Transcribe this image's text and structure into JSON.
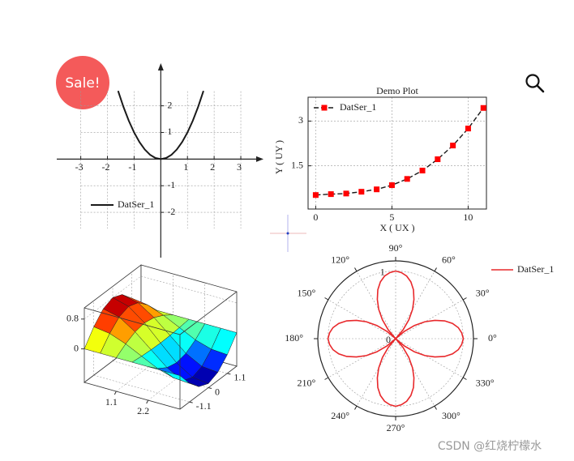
{
  "badge": "Sale!",
  "watermark": "CSDN @红烧柠檬水",
  "chart_data": [
    {
      "type": "line",
      "axes": "centered",
      "x": [
        -1.6,
        -1.4,
        -1.2,
        -1.0,
        -0.8,
        -0.6,
        -0.4,
        -0.2,
        0,
        0.2,
        0.4,
        0.6,
        0.8,
        1.0,
        1.2,
        1.4,
        1.6
      ],
      "series": [
        {
          "name": "DatSer_1",
          "color": "#1a1a1a",
          "values": [
            2.56,
            1.96,
            1.44,
            1,
            0.64,
            0.36,
            0.16,
            0.04,
            0,
            0.04,
            0.16,
            0.36,
            0.64,
            1,
            1.44,
            1.96,
            2.56
          ]
        }
      ],
      "xlim": [
        -3.9,
        3.85
      ],
      "ylim": [
        -3.7,
        3.6
      ],
      "xticks": [
        -3,
        -2,
        -1,
        1,
        2,
        3
      ],
      "yticks": [
        -2,
        -1,
        1,
        2
      ],
      "grid": true,
      "legend": "lower left"
    },
    {
      "type": "line",
      "title": "Demo Plot",
      "x_label": "X ( UX )",
      "y_label": "Y ( UY )",
      "x": [
        0,
        1,
        2,
        3,
        4,
        5,
        6,
        7,
        8,
        9,
        10,
        11
      ],
      "series": [
        {
          "name": "DatSer_1",
          "color": "#1a1a1a",
          "marker_color": "#ff0000",
          "values": [
            0.52,
            0.55,
            0.57,
            0.63,
            0.71,
            0.85,
            1.06,
            1.34,
            1.72,
            2.18,
            2.75,
            3.44
          ]
        }
      ],
      "xlim": [
        -0.5,
        11.2
      ],
      "ylim": [
        0.05,
        3.8
      ],
      "xticks": [
        0,
        5,
        10
      ],
      "yticks": [
        1.5,
        3
      ],
      "grid": true,
      "legend": "upper left"
    },
    {
      "type": "surface",
      "colormap": "jet",
      "x": [
        0,
        0.55,
        1.1,
        1.65,
        2.2,
        2.75,
        3.3
      ],
      "y": [
        -1.65,
        -1.1,
        -0.55,
        0,
        0.55,
        1.1,
        1.65
      ],
      "z": [
        [
          0,
          0.4,
          0.69,
          0.8,
          0.69,
          0.4,
          0
        ],
        [
          0,
          0.34,
          0.59,
          0.68,
          0.59,
          0.34,
          0
        ],
        [
          0,
          0.18,
          0.31,
          0.36,
          0.31,
          0.18,
          0
        ],
        [
          0,
          -0.03,
          -0.05,
          -0.06,
          -0.05,
          -0.03,
          0
        ],
        [
          0,
          -0.24,
          -0.41,
          -0.47,
          -0.41,
          -0.24,
          0
        ],
        [
          0,
          -0.37,
          -0.64,
          -0.74,
          -0.64,
          -0.37,
          0
        ],
        [
          0,
          -0.4,
          -0.68,
          -0.79,
          -0.68,
          -0.4,
          0
        ]
      ],
      "xlim": [
        0,
        3.3
      ],
      "ylim": [
        -1.65,
        1.65
      ],
      "zlim": [
        -0.9,
        1.1
      ],
      "xticks": [
        1.1,
        2.2
      ],
      "yticks": [
        -1.1,
        0,
        1.1
      ],
      "zticks": [
        0,
        0.8
      ],
      "grid": true
    },
    {
      "type": "polar",
      "theta": [
        0,
        5,
        10,
        15,
        20,
        25,
        30,
        35,
        40,
        45,
        50,
        55,
        60,
        65,
        70,
        75,
        80,
        85,
        90,
        95,
        100,
        105,
        110,
        115,
        120,
        125,
        130,
        135,
        140,
        145,
        150,
        155,
        160,
        165,
        170,
        175,
        180,
        185,
        190,
        195,
        200,
        205,
        210,
        215,
        220,
        225,
        230,
        235,
        240,
        245,
        250,
        255,
        260,
        265,
        270,
        275,
        280,
        285,
        290,
        295,
        300,
        305,
        310,
        315,
        320,
        325,
        330,
        335,
        340,
        345,
        350,
        355
      ],
      "series": [
        {
          "name": "DatSer_1",
          "color": "#e8282b",
          "values": [
            1,
            0.98,
            0.94,
            0.87,
            0.77,
            0.64,
            0.5,
            0.34,
            0.17,
            0,
            0.17,
            0.34,
            0.5,
            0.64,
            0.77,
            0.87,
            0.94,
            0.98,
            1,
            0.98,
            0.94,
            0.87,
            0.77,
            0.64,
            0.5,
            0.34,
            0.17,
            0,
            0.17,
            0.34,
            0.5,
            0.64,
            0.77,
            0.87,
            0.94,
            0.98,
            1,
            0.98,
            0.94,
            0.87,
            0.77,
            0.64,
            0.5,
            0.34,
            0.17,
            0,
            0.17,
            0.34,
            0.5,
            0.64,
            0.77,
            0.87,
            0.94,
            0.98,
            1,
            0.98,
            0.94,
            0.87,
            0.77,
            0.64,
            0.5,
            0.34,
            0.17,
            0,
            0.17,
            0.34,
            0.5,
            0.64,
            0.77,
            0.87,
            0.94,
            0.98
          ]
        }
      ],
      "rlim": [
        0,
        1.15
      ],
      "rticks": [
        0,
        1
      ],
      "thetaticks": [
        {
          "value": 0,
          "label": "0°"
        },
        {
          "value": 30,
          "label": "30°"
        },
        {
          "value": 60,
          "label": "60°"
        },
        {
          "value": 90,
          "label": "90°"
        },
        {
          "value": 120,
          "label": "120°"
        },
        {
          "value": 150,
          "label": "150°"
        },
        {
          "value": 180,
          "label": "180°"
        },
        {
          "value": 210,
          "label": "210°"
        },
        {
          "value": 240,
          "label": "240°"
        },
        {
          "value": 270,
          "label": "270°"
        },
        {
          "value": 300,
          "label": "300°"
        },
        {
          "value": 330,
          "label": "330°"
        }
      ],
      "grid": true,
      "legend": "upper right"
    }
  ]
}
